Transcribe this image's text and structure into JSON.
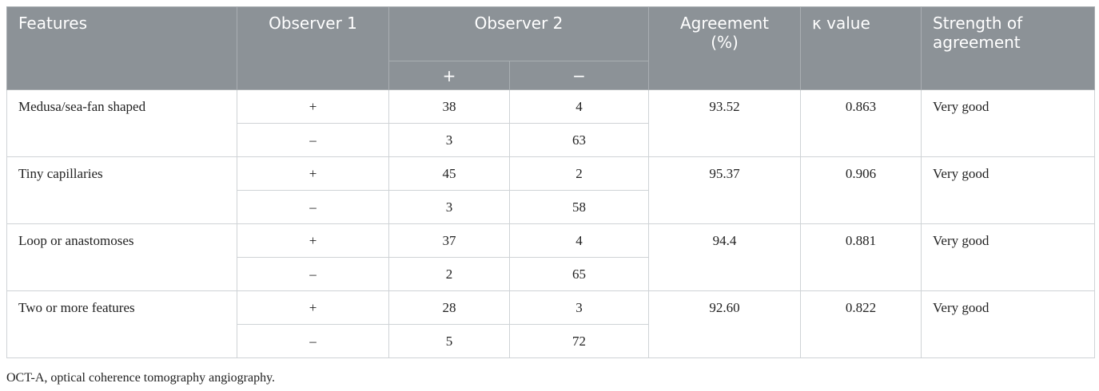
{
  "table": {
    "header": {
      "features": "Features",
      "observer1": "Observer 1",
      "observer2": "Observer 2",
      "plus": "+",
      "minus": "−",
      "agreement": "Agreement (%)",
      "kappa": "κ value",
      "strength": "Strength of agreement"
    },
    "rows": [
      {
        "feature": "Medusa/sea-fan shaped",
        "sub": [
          [
            "+",
            "38",
            "4"
          ],
          [
            "–",
            "3",
            "63"
          ]
        ],
        "agreement": "93.52",
        "kappa": "0.863",
        "strength": "Very good"
      },
      {
        "feature": "Tiny capillaries",
        "sub": [
          [
            "+",
            "45",
            "2"
          ],
          [
            "–",
            "3",
            "58"
          ]
        ],
        "agreement": "95.37",
        "kappa": "0.906",
        "strength": "Very good"
      },
      {
        "feature": "Loop or anastomoses",
        "sub": [
          [
            "+",
            "37",
            "4"
          ],
          [
            "–",
            "2",
            "65"
          ]
        ],
        "agreement": "94.4",
        "kappa": "0.881",
        "strength": "Very good"
      },
      {
        "feature": "Two or more features",
        "sub": [
          [
            "+",
            "28",
            "3"
          ],
          [
            "–",
            "5",
            "72"
          ]
        ],
        "agreement": "92.60",
        "kappa": "0.822",
        "strength": "Very good"
      }
    ]
  },
  "footnote": "OCT-A, optical coherence tomography angiography."
}
